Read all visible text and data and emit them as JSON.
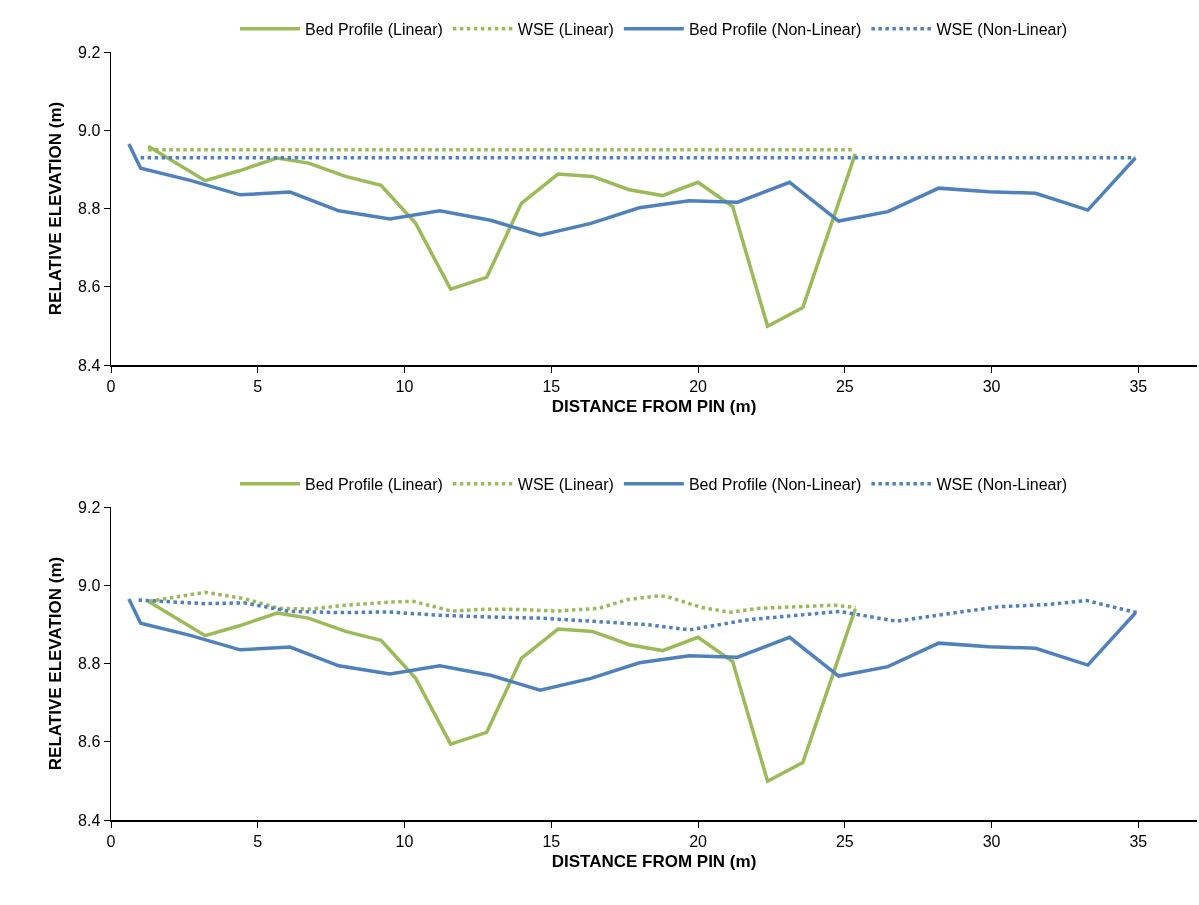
{
  "chart_data": [
    {
      "type": "line",
      "xlabel": "DISTANCE FROM PIN (m)",
      "ylabel": "RELATIVE ELEVATION (m)",
      "xlim": [
        0,
        37
      ],
      "xticks": [
        0,
        5,
        10,
        15,
        20,
        25,
        30,
        35
      ],
      "ylim": [
        8.4,
        9.2
      ],
      "yticks": [
        {
          "value": 8.4,
          "label": "8.4"
        },
        {
          "value": 8.6,
          "label": "8.6"
        },
        {
          "value": 8.8,
          "label": "8.8"
        },
        {
          "value": 9.0,
          "label": "9.0"
        },
        {
          "value": 9.2,
          "label": "9.2"
        }
      ],
      "grid": false,
      "legend": "top",
      "marker": "none",
      "series": [
        {
          "name": "Bed Profile (Linear)",
          "color": "#9bbb59",
          "line_style": "solid",
          "x": [
            1.27,
            3.21,
            4.4,
            5.65,
            6.73,
            7.99,
            9.2,
            10.38,
            11.57,
            12.8,
            13.98,
            15.23,
            16.4,
            17.66,
            18.79,
            20.0,
            21.18,
            22.37,
            23.57,
            25.36
          ],
          "values": [
            8.959,
            8.871,
            8.897,
            8.929,
            8.916,
            8.882,
            8.859,
            8.762,
            8.594,
            8.624,
            8.813,
            8.888,
            8.882,
            8.848,
            8.833,
            8.867,
            8.805,
            8.499,
            8.547,
            8.94
          ]
        },
        {
          "name": "WSE (Linear)",
          "color": "#9bbb59",
          "line_style": "dotted",
          "x": [
            1.27,
            25.36
          ],
          "values": [
            8.95,
            8.95
          ]
        },
        {
          "name": "Bed Profile (Non-Linear)",
          "color": "#4f81bd",
          "line_style": "solid",
          "x": [
            0.61,
            1.01,
            2.7,
            4.4,
            6.1,
            7.76,
            9.5,
            11.2,
            12.93,
            14.62,
            16.35,
            18.0,
            19.7,
            21.35,
            23.12,
            24.79,
            26.47,
            28.2,
            29.9,
            31.5,
            33.28,
            34.9
          ],
          "values": [
            8.965,
            8.903,
            8.872,
            8.835,
            8.842,
            8.794,
            8.773,
            8.794,
            8.77,
            8.732,
            8.762,
            8.802,
            8.82,
            8.816,
            8.867,
            8.768,
            8.792,
            8.852,
            8.843,
            8.839,
            8.796,
            8.929
          ]
        },
        {
          "name": "WSE (Non-Linear)",
          "color": "#4f81bd",
          "line_style": "dotted",
          "x": [
            1.01,
            34.9
          ],
          "values": [
            8.93,
            8.93
          ]
        }
      ]
    },
    {
      "type": "line",
      "xlabel": "DISTANCE FROM PIN (m)",
      "ylabel": "RELATIVE ELEVATION (m)",
      "xlim": [
        0,
        37
      ],
      "xticks": [
        0,
        5,
        10,
        15,
        20,
        25,
        30,
        35
      ],
      "ylim": [
        8.4,
        9.2
      ],
      "yticks": [
        {
          "value": 8.4,
          "label": "8.4"
        },
        {
          "value": 8.6,
          "label": "8.6"
        },
        {
          "value": 8.8,
          "label": "8.8"
        },
        {
          "value": 9.0,
          "label": "9.0"
        },
        {
          "value": 9.2,
          "label": "9.2"
        }
      ],
      "grid": false,
      "legend": "top",
      "marker": "none",
      "series": [
        {
          "name": "Bed Profile (Linear)",
          "color": "#9bbb59",
          "line_style": "solid",
          "x": [
            1.27,
            3.21,
            4.4,
            5.65,
            6.73,
            7.99,
            9.2,
            10.38,
            11.57,
            12.8,
            13.98,
            15.23,
            16.4,
            17.66,
            18.79,
            20.0,
            21.18,
            22.37,
            23.57,
            25.36
          ],
          "values": [
            8.959,
            8.871,
            8.897,
            8.929,
            8.916,
            8.882,
            8.859,
            8.762,
            8.594,
            8.624,
            8.813,
            8.888,
            8.882,
            8.848,
            8.833,
            8.867,
            8.805,
            8.499,
            8.547,
            8.94
          ]
        },
        {
          "name": "WSE (Linear)",
          "color": "#9bbb59",
          "line_style": "dotted",
          "x": [
            1.3,
            3.21,
            4.53,
            5.73,
            6.8,
            8.0,
            9.56,
            10.28,
            11.6,
            12.78,
            13.99,
            15.18,
            16.62,
            17.58,
            18.54,
            18.9,
            20.13,
            21.1,
            22.08,
            23.66,
            24.64,
            25.37
          ],
          "values": [
            8.959,
            8.982,
            8.966,
            8.941,
            8.939,
            8.949,
            8.957,
            8.959,
            8.934,
            8.939,
            8.938,
            8.934,
            8.941,
            8.963,
            8.972,
            8.972,
            8.943,
            8.931,
            8.941,
            8.946,
            8.949,
            8.943
          ]
        },
        {
          "name": "Bed Profile (Non-Linear)",
          "color": "#4f81bd",
          "line_style": "solid",
          "x": [
            0.61,
            1.01,
            2.7,
            4.4,
            6.1,
            7.76,
            9.5,
            11.2,
            12.93,
            14.62,
            16.35,
            18.0,
            19.7,
            21.35,
            23.12,
            24.79,
            26.47,
            28.2,
            29.9,
            31.5,
            33.28,
            34.9
          ],
          "values": [
            8.965,
            8.903,
            8.872,
            8.835,
            8.842,
            8.794,
            8.773,
            8.794,
            8.77,
            8.732,
            8.762,
            8.802,
            8.82,
            8.816,
            8.867,
            8.768,
            8.792,
            8.852,
            8.843,
            8.839,
            8.796,
            8.929
          ]
        },
        {
          "name": "WSE (Non-Linear)",
          "color": "#4f81bd",
          "line_style": "dotted",
          "x": [
            0.94,
            3.21,
            4.53,
            6.09,
            8.0,
            9.44,
            11.0,
            12.79,
            14.59,
            16.62,
            18.3,
            19.7,
            21.71,
            24.82,
            26.77,
            28.4,
            30.24,
            31.95,
            33.23,
            35.0
          ],
          "values": [
            8.962,
            8.953,
            8.955,
            8.933,
            8.93,
            8.932,
            8.924,
            8.919,
            8.916,
            8.907,
            8.899,
            8.886,
            8.912,
            8.933,
            8.908,
            8.926,
            8.945,
            8.951,
            8.961,
            8.929
          ]
        }
      ]
    }
  ]
}
